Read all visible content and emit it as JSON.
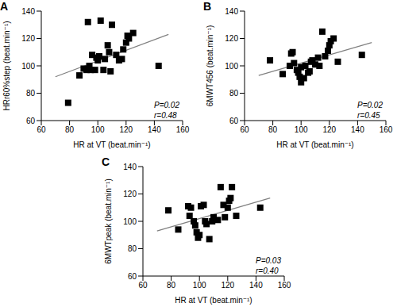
{
  "chart_data": [
    {
      "type": "scatter",
      "title": "A",
      "xlabel": "HR at VT (beat.min⁻¹)",
      "ylabel": "HRr60%step (beat.min⁻¹)",
      "x": [
        79,
        87,
        90,
        92,
        93,
        94,
        95,
        96,
        98,
        99,
        100,
        101,
        102,
        104,
        105,
        107,
        108,
        109,
        110,
        113,
        115,
        117,
        118,
        120,
        121,
        122,
        125,
        143
      ],
      "values": [
        73,
        93,
        98,
        97,
        132,
        100,
        97,
        108,
        97,
        106,
        104,
        107,
        133,
        97,
        105,
        115,
        110,
        96,
        130,
        108,
        104,
        105,
        112,
        117,
        122,
        120,
        124,
        100
      ],
      "color": "#000000",
      "marker": "square",
      "trend_line": {
        "x": [
          70,
          150
        ],
        "values": [
          92,
          123
        ]
      },
      "xlim": [
        60,
        160
      ],
      "xticks": [
        60,
        80,
        100,
        120,
        140,
        160
      ],
      "ylim": [
        60,
        140
      ],
      "yticks": [
        60,
        80,
        100,
        120,
        140
      ],
      "annotations": [
        "P=0.02",
        "r=0.48"
      ]
    },
    {
      "type": "scatter",
      "title": "B",
      "xlabel": "HR at VT (beat.min⁻¹)",
      "ylabel": "6MWT456 (beat.min⁻¹)",
      "x": [
        78,
        87,
        92,
        93,
        94,
        95,
        97,
        98,
        99,
        100,
        100,
        102,
        103,
        105,
        106,
        107,
        108,
        110,
        112,
        113,
        115,
        117,
        119,
        120,
        121,
        123,
        126,
        143
      ],
      "values": [
        104,
        94,
        100,
        109,
        110,
        102,
        97,
        95,
        92,
        99,
        88,
        91,
        100,
        95,
        96,
        103,
        104,
        101,
        106,
        100,
        125,
        107,
        111,
        115,
        118,
        120,
        103,
        108
      ],
      "color": "#000000",
      "marker": "square",
      "trend_line": {
        "x": [
          70,
          150
        ],
        "values": [
          93,
          117
        ]
      },
      "xlim": [
        60,
        160
      ],
      "xticks": [
        60,
        80,
        100,
        120,
        140,
        160
      ],
      "ylim": [
        60,
        140
      ],
      "yticks": [
        60,
        80,
        100,
        120,
        140
      ],
      "annotations": [
        "P=0.02",
        "r=0.45"
      ]
    },
    {
      "type": "scatter",
      "title": "C",
      "xlabel": "HR at VT (beat.min⁻¹)",
      "ylabel": "6MWTpeak (beat.min⁻¹)",
      "x": [
        78,
        85,
        92,
        93,
        94,
        96,
        97,
        98,
        99,
        100,
        101,
        103,
        104,
        105,
        107,
        109,
        110,
        113,
        115,
        117,
        118,
        120,
        121,
        122,
        123,
        126,
        143
      ],
      "values": [
        108,
        94,
        111,
        104,
        110,
        100,
        97,
        92,
        88,
        90,
        111,
        112,
        100,
        98,
        87,
        100,
        103,
        101,
        125,
        112,
        103,
        110,
        115,
        117,
        125,
        104,
        110
      ],
      "color": "#000000",
      "marker": "square",
      "trend_line": {
        "x": [
          70,
          150
        ],
        "values": [
          93,
          117
        ]
      },
      "xlim": [
        60,
        160
      ],
      "xticks": [
        60,
        80,
        100,
        120,
        140,
        160
      ],
      "ylim": [
        60,
        140
      ],
      "yticks": [
        60,
        80,
        100,
        120,
        140
      ],
      "annotations": [
        "P=0.03",
        "r=0.40"
      ]
    }
  ]
}
